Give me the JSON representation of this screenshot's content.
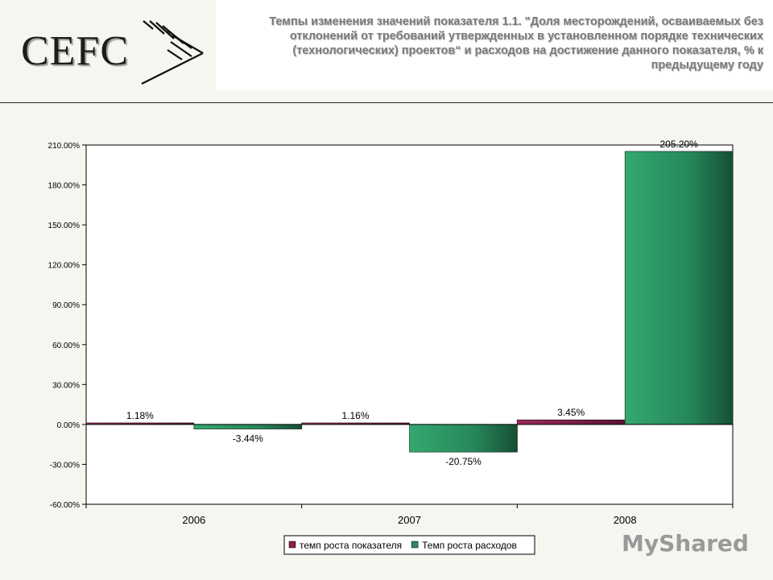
{
  "header": {
    "logo_text": "CEFC",
    "title": "Темпы изменения значений показателя 1.1. \"Доля месторождений, осваиваемых без отклонений от требований утвержденных в установленном порядке технических (технологических) проектов“ и расходов на достижение данного показателя, % к предыдущему году"
  },
  "watermark": {
    "prefix": "My",
    "suffix": "Shared"
  },
  "chart_data": {
    "type": "bar",
    "categories": [
      "2006",
      "2007",
      "2008"
    ],
    "series": [
      {
        "name": "темп роста показателя",
        "values": [
          1.18,
          1.16,
          3.45
        ],
        "labels": [
          "1.18%",
          "1.16%",
          "3.45%"
        ],
        "color": "#8b1e4e"
      },
      {
        "name": "Темп роста расходов",
        "values": [
          -3.44,
          -20.75,
          205.2
        ],
        "labels": [
          "-3.44%",
          "-20.75%",
          "205.20%"
        ],
        "color": "#2e9a66"
      }
    ],
    "ylim": [
      -60,
      210
    ],
    "yticks": [
      "-60.00%",
      "-30.00%",
      "0.00%",
      "30.00%",
      "60.00%",
      "90.00%",
      "120.00%",
      "150.00%",
      "180.00%",
      "210.00%"
    ],
    "ytick_values": [
      -60,
      -30,
      0,
      30,
      60,
      90,
      120,
      150,
      180,
      210
    ],
    "legend_position": "bottom",
    "grid": false
  }
}
